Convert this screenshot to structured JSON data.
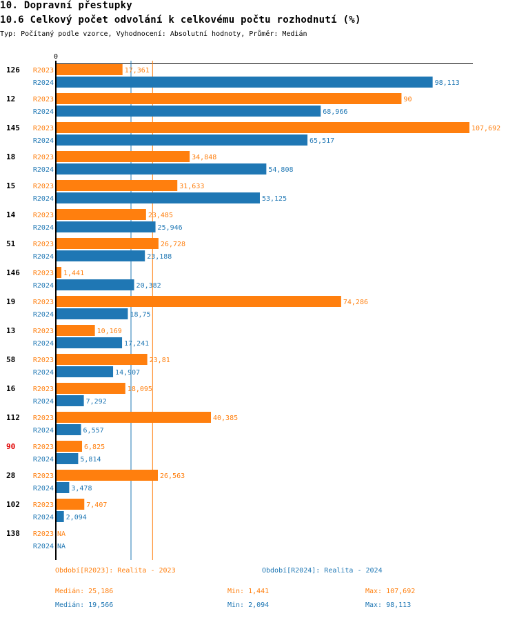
{
  "header": {
    "section_title": "10. Dopravní přestupky",
    "chart_title": "10.6 Celkový počet odvolání k celkovému počtu rozhodnutí (%)",
    "subtitle": "Typ: Počítaný podle vzorce, Vyhodnocení: Absolutní hodnoty, Průměr: Medián"
  },
  "colors": {
    "R2023": "#ff7f0e",
    "R2024": "#1f77b4",
    "highlight_label": "#e00000",
    "axis": "#000000"
  },
  "chart_data": {
    "type": "bar",
    "orientation": "horizontal",
    "title": "10.6 Celkový počet odvolání k celkovému počtu rozhodnutí (%)",
    "xlabel": "",
    "ylabel": "",
    "x_tick_labels": [
      "0"
    ],
    "xlim": [
      0,
      107.692
    ],
    "grid": false,
    "categories": [
      "126",
      "12",
      "145",
      "18",
      "15",
      "14",
      "51",
      "146",
      "19",
      "13",
      "58",
      "16",
      "112",
      "90",
      "28",
      "102",
      "138"
    ],
    "highlighted_category": "90",
    "series": [
      {
        "name": "R2023",
        "values": [
          17.361,
          90,
          107.692,
          34.848,
          31.633,
          23.485,
          26.728,
          1.441,
          74.286,
          10.169,
          23.81,
          18.095,
          40.385,
          6.825,
          26.563,
          7.407,
          null
        ],
        "labels": [
          "17,361",
          "90",
          "107,692",
          "34,848",
          "31,633",
          "23,485",
          "26,728",
          "1,441",
          "74,286",
          "10,169",
          "23,81",
          "18,095",
          "40,385",
          "6,825",
          "26,563",
          "7,407",
          "NA"
        ]
      },
      {
        "name": "R2024",
        "values": [
          98.113,
          68.966,
          65.517,
          54.808,
          53.125,
          25.946,
          23.188,
          20.382,
          18.75,
          17.241,
          14.907,
          7.292,
          6.557,
          5.814,
          3.478,
          2.094,
          null
        ],
        "labels": [
          "98,113",
          "68,966",
          "65,517",
          "54,808",
          "53,125",
          "25,946",
          "23,188",
          "20,382",
          "18,75",
          "17,241",
          "14,907",
          "7,292",
          "6,557",
          "5,814",
          "3,478",
          "2,094",
          "NA"
        ]
      }
    ],
    "median_lines": [
      {
        "series": "R2023",
        "value": 25.186
      },
      {
        "series": "R2024",
        "value": 19.566
      }
    ]
  },
  "legend": {
    "R2023": "Období[R2023]: Realita - 2023",
    "R2024": "Období[R2024]: Realita - 2024",
    "placement": "bottom"
  },
  "stats": {
    "R2023": {
      "median": "Medián: 25,186",
      "min": "Min: 1,441",
      "max": "Max: 107,692"
    },
    "R2024": {
      "median": "Medián: 19,566",
      "min": "Min: 2,094",
      "max": "Max: 98,113"
    }
  }
}
